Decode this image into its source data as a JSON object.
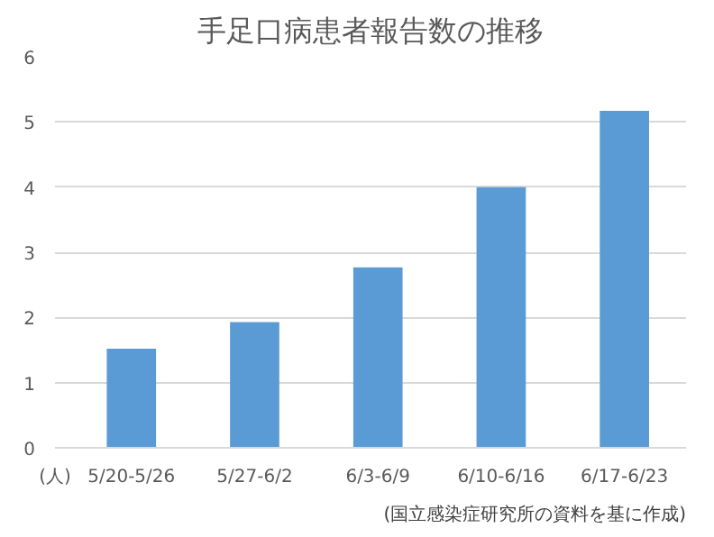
{
  "chart_data": {
    "type": "bar",
    "title": "手足口病患者報告数の推移",
    "categories": [
      "5/20-5/26",
      "5/27-6/2",
      "6/3-6/9",
      "6/10-6/16",
      "6/17-6/23"
    ],
    "values": [
      1.52,
      1.93,
      2.77,
      4.0,
      5.17
    ],
    "color": "#5b9bd5",
    "ylim": [
      0,
      6
    ],
    "yticks": [
      0,
      1,
      2,
      3,
      4,
      5,
      6
    ],
    "grid": "y",
    "annotations": [
      "(人)",
      "(国立感染症研究所の資料を基に作成)"
    ]
  }
}
